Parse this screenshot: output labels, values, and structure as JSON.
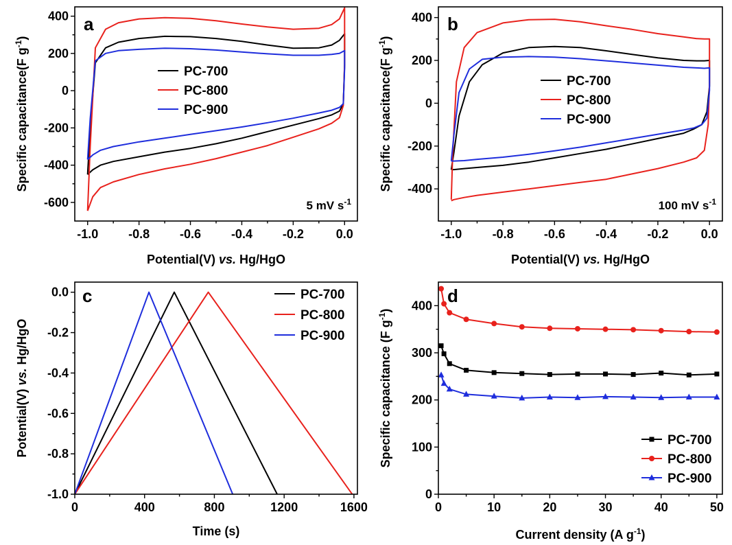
{
  "colors": {
    "PC-700": "#000000",
    "PC-800": "#e8211c",
    "PC-900": "#1e2ddc"
  },
  "chart_data": [
    {
      "panel": "a",
      "type": "line",
      "xlabel": "Potential(V) vs. Hg/HgO",
      "ylabel": "Specific capacitance(F g-1)",
      "ylabel_main": "Specific capacitance(F g",
      "ylabel_sup": "-1",
      "ylabel_close": ")",
      "xlim": [
        -1.05,
        0.05
      ],
      "ylim": [
        -700,
        450
      ],
      "xticks": [
        -1.0,
        -0.8,
        -0.6,
        -0.4,
        -0.2,
        0.0
      ],
      "xtick_labels": [
        "-1.0",
        "-0.8",
        "-0.6",
        "-0.4",
        "-0.2",
        "0.0"
      ],
      "yticks": [
        -600,
        -400,
        -200,
        0,
        200,
        400
      ],
      "ytick_labels": [
        "-600",
        "-400",
        "-200",
        "0",
        "200",
        "400"
      ],
      "annotation": "5 mV s-1",
      "annotation_main": "5 mV s",
      "annotation_sup": "-1",
      "legend": [
        "PC-700",
        "PC-800",
        "PC-900"
      ],
      "legend_position": "center-left",
      "series": [
        {
          "name": "PC-700",
          "x": [
            -1.0,
            -0.99,
            -0.97,
            -0.93,
            -0.88,
            -0.8,
            -0.7,
            -0.6,
            -0.5,
            -0.4,
            -0.3,
            -0.2,
            -0.1,
            -0.05,
            -0.02,
            0.0,
            0.0,
            -0.005,
            -0.02,
            -0.05,
            -0.1,
            -0.2,
            -0.3,
            -0.4,
            -0.5,
            -0.6,
            -0.7,
            -0.8,
            -0.9,
            -0.95,
            -0.98,
            -1.0,
            -1.0
          ],
          "y": [
            -450,
            -200,
            150,
            230,
            260,
            280,
            292,
            290,
            280,
            265,
            245,
            228,
            230,
            245,
            270,
            305,
            140,
            -70,
            -110,
            -130,
            -150,
            -185,
            -220,
            -255,
            -285,
            -310,
            -330,
            -355,
            -380,
            -400,
            -425,
            -450,
            -450
          ]
        },
        {
          "name": "PC-800",
          "x": [
            -1.0,
            -0.99,
            -0.97,
            -0.93,
            -0.88,
            -0.8,
            -0.7,
            -0.6,
            -0.5,
            -0.4,
            -0.3,
            -0.2,
            -0.1,
            -0.05,
            -0.02,
            0.0,
            0.0,
            -0.005,
            -0.02,
            -0.05,
            -0.1,
            -0.2,
            -0.3,
            -0.4,
            -0.5,
            -0.6,
            -0.7,
            -0.8,
            -0.9,
            -0.95,
            -0.98,
            -1.0,
            -1.0
          ],
          "y": [
            -645,
            -300,
            230,
            330,
            365,
            385,
            392,
            388,
            375,
            358,
            342,
            330,
            335,
            355,
            385,
            445,
            150,
            -80,
            -145,
            -175,
            -205,
            -250,
            -295,
            -330,
            -365,
            -395,
            -420,
            -450,
            -490,
            -520,
            -570,
            -645,
            -645
          ]
        },
        {
          "name": "PC-900",
          "x": [
            -1.0,
            -0.99,
            -0.97,
            -0.93,
            -0.88,
            -0.8,
            -0.7,
            -0.6,
            -0.5,
            -0.4,
            -0.3,
            -0.2,
            -0.1,
            -0.05,
            -0.02,
            0.0,
            0.0,
            -0.005,
            -0.02,
            -0.05,
            -0.1,
            -0.2,
            -0.3,
            -0.4,
            -0.5,
            -0.6,
            -0.7,
            -0.8,
            -0.9,
            -0.95,
            -0.98,
            -1.0,
            -1.0
          ],
          "y": [
            -370,
            -150,
            160,
            200,
            215,
            222,
            228,
            225,
            218,
            208,
            198,
            190,
            190,
            195,
            200,
            215,
            120,
            -70,
            -90,
            -105,
            -120,
            -148,
            -172,
            -195,
            -215,
            -235,
            -255,
            -275,
            -300,
            -320,
            -345,
            -370,
            -370
          ]
        }
      ]
    },
    {
      "panel": "b",
      "type": "line",
      "xlabel": "Potential(V) vs. Hg/HgO",
      "ylabel": "Specific capacitance(F g-1)",
      "ylabel_main": "Specific capacitance(F g",
      "ylabel_sup": "-1",
      "ylabel_close": ")",
      "xlim": [
        -1.05,
        0.05
      ],
      "ylim": [
        -550,
        450
      ],
      "xticks": [
        -1.0,
        -0.8,
        -0.6,
        -0.4,
        -0.2,
        0.0
      ],
      "xtick_labels": [
        "-1.0",
        "-0.8",
        "-0.6",
        "-0.4",
        "-0.2",
        "0.0"
      ],
      "yticks": [
        -400,
        -200,
        0,
        200,
        400
      ],
      "ytick_labels": [
        "-400",
        "-200",
        "0",
        "200",
        "400"
      ],
      "annotation": "100 mV s-1",
      "annotation_main": "100 mV s",
      "annotation_sup": "-1",
      "legend": [
        "PC-700",
        "PC-800",
        "PC-900"
      ],
      "legend_position": "center-right",
      "series": [
        {
          "name": "PC-700",
          "x": [
            -1.0,
            -0.99,
            -0.97,
            -0.93,
            -0.88,
            -0.8,
            -0.7,
            -0.6,
            -0.5,
            -0.4,
            -0.3,
            -0.2,
            -0.1,
            -0.05,
            -0.02,
            0.0,
            0.0,
            -0.01,
            -0.03,
            -0.06,
            -0.1,
            -0.2,
            -0.3,
            -0.4,
            -0.5,
            -0.6,
            -0.7,
            -0.8,
            -0.9,
            -0.95,
            -0.99,
            -1.0
          ],
          "y": [
            -310,
            -230,
            -60,
            100,
            180,
            235,
            260,
            265,
            260,
            245,
            228,
            212,
            200,
            198,
            198,
            200,
            80,
            -40,
            -100,
            -120,
            -140,
            -165,
            -190,
            -215,
            -235,
            -255,
            -275,
            -290,
            -300,
            -305,
            -310,
            -310
          ]
        },
        {
          "name": "PC-800",
          "x": [
            -1.0,
            -0.995,
            -0.98,
            -0.95,
            -0.9,
            -0.8,
            -0.7,
            -0.6,
            -0.5,
            -0.4,
            -0.3,
            -0.2,
            -0.1,
            -0.05,
            -0.02,
            0.0,
            0.0,
            -0.005,
            -0.02,
            -0.05,
            -0.1,
            -0.2,
            -0.3,
            -0.4,
            -0.5,
            -0.6,
            -0.7,
            -0.8,
            -0.9,
            -0.95,
            -0.99,
            -1.0
          ],
          "y": [
            -450,
            -250,
            100,
            260,
            330,
            375,
            390,
            392,
            380,
            362,
            345,
            325,
            310,
            302,
            300,
            300,
            100,
            -100,
            -220,
            -255,
            -275,
            -305,
            -330,
            -355,
            -370,
            -385,
            -400,
            -415,
            -430,
            -440,
            -450,
            -455
          ]
        },
        {
          "name": "PC-900",
          "x": [
            -1.0,
            -0.99,
            -0.97,
            -0.93,
            -0.88,
            -0.8,
            -0.7,
            -0.6,
            -0.5,
            -0.4,
            -0.3,
            -0.2,
            -0.1,
            -0.05,
            -0.02,
            0.0,
            0.0,
            -0.01,
            -0.03,
            -0.06,
            -0.1,
            -0.2,
            -0.3,
            -0.4,
            -0.5,
            -0.6,
            -0.7,
            -0.8,
            -0.9,
            -0.95,
            -0.99,
            -1.0
          ],
          "y": [
            -270,
            -150,
            50,
            160,
            205,
            215,
            218,
            215,
            208,
            198,
            188,
            178,
            168,
            165,
            163,
            165,
            60,
            -70,
            -100,
            -115,
            -125,
            -145,
            -165,
            -185,
            -205,
            -222,
            -238,
            -252,
            -262,
            -268,
            -270,
            -270
          ]
        }
      ]
    },
    {
      "panel": "c",
      "type": "line",
      "xlabel": "Time (s)",
      "ylabel": "Potential(V) vs. Hg/HgO",
      "xlim": [
        0,
        1620
      ],
      "ylim": [
        -1.0,
        0.05
      ],
      "xticks": [
        0,
        400,
        800,
        1200,
        1600
      ],
      "xtick_labels": [
        "0",
        "400",
        "800",
        "1200",
        "1600"
      ],
      "yticks": [
        -1.0,
        -0.8,
        -0.6,
        -0.4,
        -0.2,
        0.0
      ],
      "ytick_labels": [
        "-1.0",
        "-0.8",
        "-0.6",
        "-0.4",
        "-0.2",
        "0.0"
      ],
      "legend": [
        "PC-700",
        "PC-800",
        "PC-900"
      ],
      "legend_position": "top-right",
      "series": [
        {
          "name": "PC-700",
          "x": [
            0,
            570,
            1160
          ],
          "y": [
            -1.0,
            0.0,
            -1.0
          ]
        },
        {
          "name": "PC-800",
          "x": [
            0,
            765,
            1590
          ],
          "y": [
            -1.0,
            0.0,
            -1.0
          ]
        },
        {
          "name": "PC-900",
          "x": [
            0,
            425,
            905
          ],
          "y": [
            -1.0,
            0.0,
            -1.0
          ]
        }
      ]
    },
    {
      "panel": "d",
      "type": "line",
      "xlabel": "Current density (A g-1)",
      "xlabel_main": "Current density (A g",
      "xlabel_sup": "-1",
      "xlabel_close": ")",
      "ylabel": "Specific capacitance (F g-1)",
      "ylabel_main": "Specific capacitance (F g",
      "ylabel_sup": "-1",
      "ylabel_close": ")",
      "xlim": [
        0,
        51
      ],
      "ylim": [
        0,
        450
      ],
      "xticks": [
        0,
        10,
        20,
        30,
        40,
        50
      ],
      "xtick_labels": [
        "0",
        "10",
        "20",
        "30",
        "40",
        "50"
      ],
      "yticks": [
        0,
        100,
        200,
        300,
        400
      ],
      "ytick_labels": [
        "0",
        "100",
        "200",
        "300",
        "400"
      ],
      "legend": [
        "PC-700",
        "PC-800",
        "PC-900"
      ],
      "legend_position": "bottom-right",
      "series": [
        {
          "name": "PC-700",
          "marker": "square",
          "x": [
            0.5,
            1,
            2,
            5,
            10,
            15,
            20,
            25,
            30,
            35,
            40,
            45,
            50
          ],
          "y": [
            315,
            298,
            277,
            263,
            258,
            256,
            254,
            255,
            255,
            254,
            257,
            253,
            255
          ]
        },
        {
          "name": "PC-800",
          "marker": "circle",
          "x": [
            0.5,
            1,
            2,
            5,
            10,
            15,
            20,
            25,
            30,
            35,
            40,
            45,
            50
          ],
          "y": [
            436,
            404,
            385,
            371,
            362,
            355,
            352,
            351,
            350,
            349,
            347,
            345,
            344
          ]
        },
        {
          "name": "PC-900",
          "marker": "triangle",
          "x": [
            0.5,
            1,
            2,
            5,
            10,
            15,
            20,
            25,
            30,
            35,
            40,
            45,
            50
          ],
          "y": [
            253,
            235,
            223,
            212,
            208,
            204,
            206,
            205,
            207,
            206,
            205,
            206,
            206
          ]
        }
      ]
    }
  ]
}
